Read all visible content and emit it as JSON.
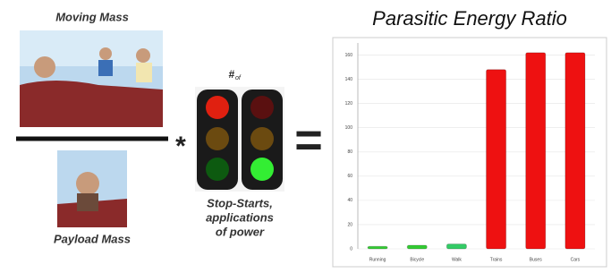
{
  "labels": {
    "moving_mass": "Moving Mass",
    "payload_mass": "Payload Mass",
    "count_symbol": "#",
    "count_sub": "of",
    "stop_starts": [
      "Stop-Starts,",
      "applications",
      "of power"
    ],
    "times": "*",
    "equals": "="
  },
  "chart_data": {
    "type": "bar",
    "title": "Parasitic Energy Ratio",
    "categories": [
      "Running",
      "Bicycle",
      "Walk",
      "Trains",
      "Buses",
      "Cars"
    ],
    "values": [
      2,
      3,
      4,
      148,
      162,
      162
    ],
    "colors": [
      "#33cc33",
      "#33cc33",
      "#33cc66",
      "#ee1111",
      "#ee1111",
      "#ee1111"
    ],
    "ylim": [
      0,
      170
    ],
    "yticks": [
      0,
      20,
      40,
      60,
      80,
      100,
      120,
      140,
      160
    ],
    "grid": true
  }
}
